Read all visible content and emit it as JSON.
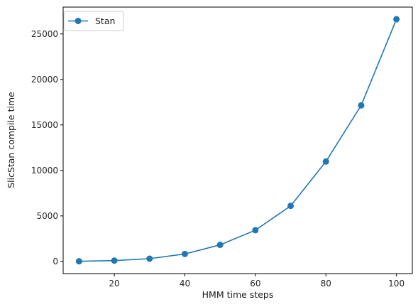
{
  "chart_data": {
    "type": "line",
    "title": "",
    "xlabel": "HMM time steps",
    "ylabel": "SlicStan compile time",
    "x": [
      10,
      20,
      30,
      40,
      50,
      60,
      70,
      80,
      90,
      100
    ],
    "series": [
      {
        "name": "Stan",
        "color": "#1f77b4",
        "marker": "circle",
        "values": [
          15,
          90,
          300,
          820,
          1820,
          3430,
          6100,
          10980,
          17150,
          26620
        ]
      }
    ],
    "xlim": [
      5.5,
      104.5
    ],
    "ylim": [
      -1340,
      27950
    ],
    "xticks": [
      20,
      40,
      60,
      80,
      100
    ],
    "yticks": [
      0,
      5000,
      10000,
      15000,
      20000,
      25000
    ],
    "xtick_labels": [
      "20",
      "40",
      "60",
      "80",
      "100"
    ],
    "ytick_labels": [
      "0",
      "5000",
      "10000",
      "15000",
      "20000",
      "25000"
    ],
    "grid": false,
    "legend_position": "upper-left"
  }
}
